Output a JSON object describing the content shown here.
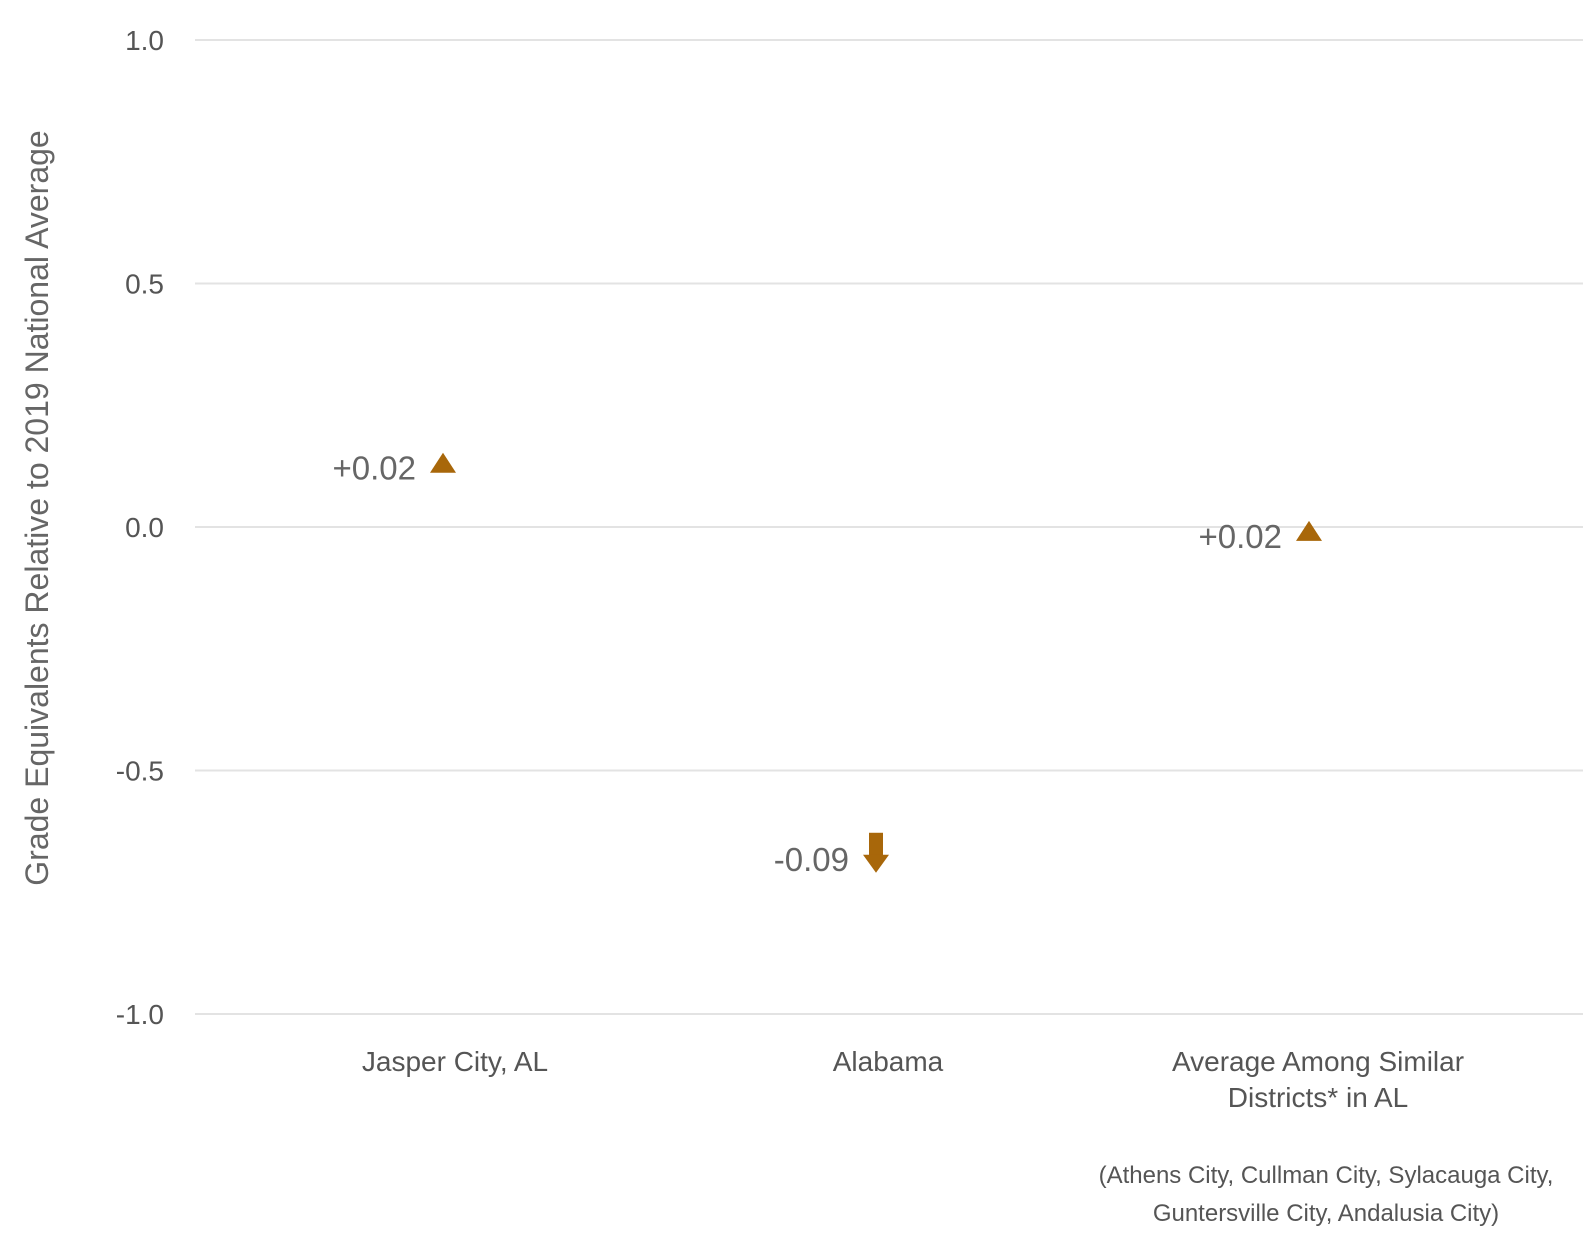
{
  "chart_data": {
    "type": "scatter",
    "title": "",
    "ylabel": "Grade Equivalents Relative to 2019 National Average",
    "xlabel": "",
    "ylim": [
      -1.0,
      1.0
    ],
    "yticks": [
      1.0,
      0.5,
      0.0,
      -0.5,
      -1.0
    ],
    "ytick_labels": [
      "1.0",
      "0.5",
      "0.0",
      "-0.5",
      "-1.0"
    ],
    "grid": "horizontal",
    "categories": [
      [
        "Jasper City, AL"
      ],
      [
        "Alabama"
      ],
      [
        "Average Among Similar",
        "Districts* in AL"
      ]
    ],
    "points": [
      {
        "category_index": 0,
        "y": 0.13,
        "change_label": "+0.02",
        "direction": "up",
        "marker": "triangle"
      },
      {
        "category_index": 1,
        "y": -0.71,
        "change_label": "-0.09",
        "direction": "down",
        "marker": "arrow"
      },
      {
        "category_index": 2,
        "y": -0.01,
        "change_label": "+0.02",
        "direction": "up",
        "marker": "triangle"
      }
    ],
    "note": [
      "(Athens City, Cullman City, Sylacauga City,",
      "Guntersville City, Andalusia City)"
    ],
    "colors": {
      "marker": "#a8670a",
      "grid": "#e3e3e3",
      "text": "#555555"
    }
  }
}
